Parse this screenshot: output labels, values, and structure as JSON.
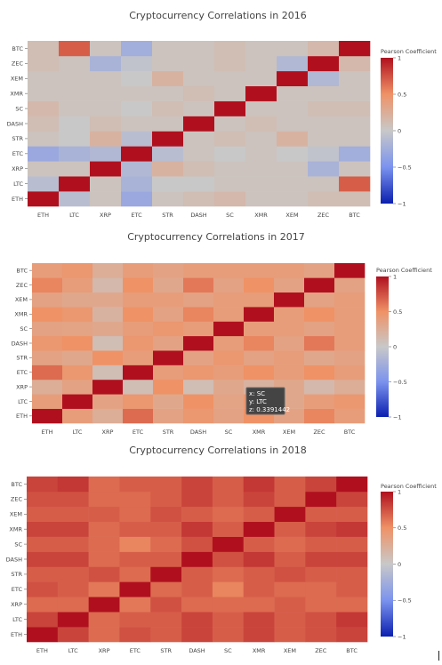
{
  "colors": {
    "neg1": "#0b1fb0",
    "negHalf": "#7b93ee",
    "zero": "#c8c8c8",
    "posHalf": "#ef9266",
    "pos1": "#b0101e"
  },
  "colorbar": {
    "title": "Pearson Coefficient",
    "ticks": [
      "1",
      "0.5",
      "0",
      "−0.5",
      "−1"
    ],
    "tick_values": [
      1,
      0.5,
      0,
      -0.5,
      -1
    ]
  },
  "chart_data": [
    {
      "type": "heatmap",
      "title": "Cryptocurrency Correlations in 2016",
      "x": [
        "ETH",
        "LTC",
        "XRP",
        "ETC",
        "STR",
        "DASH",
        "SC",
        "XMR",
        "XEM",
        "ZEC",
        "BTC"
      ],
      "y": [
        "ETH",
        "LTC",
        "XRP",
        "ETC",
        "STR",
        "DASH",
        "SC",
        "XMR",
        "XEM",
        "ZEC",
        "BTC"
      ],
      "zlim": [
        -1,
        1
      ],
      "z": [
        [
          1.0,
          -0.1,
          0.05,
          -0.3,
          0.05,
          0.1,
          0.15,
          0.05,
          0.05,
          0.1,
          0.1
        ],
        [
          -0.1,
          1.0,
          0.05,
          -0.2,
          0.0,
          0.0,
          0.05,
          0.05,
          0.05,
          0.05,
          0.7
        ],
        [
          0.05,
          0.05,
          1.0,
          -0.15,
          0.2,
          0.1,
          0.05,
          0.05,
          0.05,
          -0.2,
          0.05
        ],
        [
          -0.3,
          -0.2,
          -0.15,
          1.0,
          -0.1,
          0.05,
          0.0,
          0.05,
          0.0,
          -0.05,
          -0.25
        ],
        [
          0.05,
          0.0,
          0.2,
          -0.1,
          1.0,
          0.05,
          0.1,
          0.05,
          0.2,
          0.05,
          0.05
        ],
        [
          0.1,
          0.0,
          0.1,
          0.05,
          0.05,
          1.0,
          0.05,
          0.1,
          0.05,
          0.05,
          0.05
        ],
        [
          0.15,
          0.05,
          0.05,
          0.0,
          0.1,
          0.05,
          1.0,
          0.05,
          0.05,
          0.1,
          0.1
        ],
        [
          0.05,
          0.05,
          0.05,
          0.05,
          0.05,
          0.1,
          0.05,
          1.0,
          0.05,
          0.05,
          0.05
        ],
        [
          0.05,
          0.05,
          0.05,
          0.0,
          0.2,
          0.05,
          0.05,
          0.05,
          1.0,
          -0.15,
          0.05
        ],
        [
          0.1,
          0.05,
          -0.2,
          -0.05,
          0.05,
          0.05,
          0.1,
          0.05,
          -0.15,
          1.0,
          0.15
        ],
        [
          0.1,
          0.7,
          0.05,
          -0.25,
          0.05,
          0.05,
          0.1,
          0.05,
          0.05,
          0.15,
          1.0
        ]
      ]
    },
    {
      "type": "heatmap",
      "title": "Cryptocurrency Correlations in 2017",
      "x": [
        "ETH",
        "LTC",
        "XRP",
        "ETC",
        "STR",
        "DASH",
        "SC",
        "XMR",
        "XEM",
        "ZEC",
        "BTC"
      ],
      "y": [
        "ETH",
        "LTC",
        "XRP",
        "ETC",
        "STR",
        "DASH",
        "SC",
        "XMR",
        "XEM",
        "ZEC",
        "BTC"
      ],
      "zlim": [
        -1,
        1
      ],
      "z": [
        [
          1.0,
          0.4,
          0.25,
          0.65,
          0.35,
          0.45,
          0.35,
          0.5,
          0.35,
          0.55,
          0.4
        ],
        [
          0.4,
          1.0,
          0.35,
          0.45,
          0.3,
          0.5,
          0.34,
          0.45,
          0.3,
          0.4,
          0.45
        ],
        [
          0.25,
          0.35,
          1.0,
          0.1,
          0.5,
          0.1,
          0.3,
          0.2,
          0.3,
          0.15,
          0.25
        ],
        [
          0.65,
          0.45,
          0.1,
          1.0,
          0.4,
          0.45,
          0.4,
          0.5,
          0.4,
          0.5,
          0.4
        ],
        [
          0.35,
          0.3,
          0.5,
          0.4,
          1.0,
          0.35,
          0.45,
          0.35,
          0.4,
          0.3,
          0.35
        ],
        [
          0.45,
          0.5,
          0.1,
          0.45,
          0.35,
          1.0,
          0.4,
          0.55,
          0.35,
          0.6,
          0.4
        ],
        [
          0.35,
          0.34,
          0.3,
          0.4,
          0.45,
          0.4,
          1.0,
          0.4,
          0.4,
          0.35,
          0.4
        ],
        [
          0.5,
          0.45,
          0.2,
          0.5,
          0.35,
          0.55,
          0.4,
          1.0,
          0.4,
          0.5,
          0.4
        ],
        [
          0.35,
          0.3,
          0.3,
          0.4,
          0.4,
          0.35,
          0.4,
          0.4,
          1.0,
          0.35,
          0.4
        ],
        [
          0.55,
          0.4,
          0.15,
          0.5,
          0.3,
          0.6,
          0.35,
          0.5,
          0.35,
          1.0,
          0.35
        ],
        [
          0.4,
          0.45,
          0.25,
          0.4,
          0.35,
          0.4,
          0.4,
          0.4,
          0.4,
          0.35,
          1.0
        ]
      ]
    },
    {
      "type": "heatmap",
      "title": "Cryptocurrency Correlations in 2018",
      "x": [
        "ETH",
        "LTC",
        "XRP",
        "ETC",
        "STR",
        "DASH",
        "SC",
        "XMR",
        "XEM",
        "ZEC",
        "BTC"
      ],
      "y": [
        "ETH",
        "LTC",
        "XRP",
        "ETC",
        "STR",
        "DASH",
        "SC",
        "XMR",
        "XEM",
        "ZEC",
        "BTC"
      ],
      "zlim": [
        -1,
        1
      ],
      "z": [
        [
          1.0,
          0.8,
          0.65,
          0.75,
          0.7,
          0.8,
          0.7,
          0.8,
          0.7,
          0.75,
          0.8
        ],
        [
          0.8,
          1.0,
          0.65,
          0.7,
          0.7,
          0.8,
          0.7,
          0.8,
          0.7,
          0.75,
          0.85
        ],
        [
          0.65,
          0.65,
          1.0,
          0.6,
          0.75,
          0.65,
          0.65,
          0.65,
          0.7,
          0.65,
          0.65
        ],
        [
          0.75,
          0.7,
          0.6,
          1.0,
          0.65,
          0.7,
          0.55,
          0.7,
          0.65,
          0.65,
          0.7
        ],
        [
          0.7,
          0.7,
          0.75,
          0.65,
          1.0,
          0.7,
          0.65,
          0.7,
          0.75,
          0.7,
          0.7
        ],
        [
          0.8,
          0.8,
          0.65,
          0.7,
          0.7,
          1.0,
          0.75,
          0.85,
          0.7,
          0.8,
          0.8
        ],
        [
          0.7,
          0.7,
          0.65,
          0.55,
          0.65,
          0.75,
          1.0,
          0.7,
          0.65,
          0.7,
          0.7
        ],
        [
          0.8,
          0.8,
          0.65,
          0.7,
          0.7,
          0.85,
          0.7,
          1.0,
          0.7,
          0.8,
          0.85
        ],
        [
          0.7,
          0.7,
          0.7,
          0.65,
          0.75,
          0.7,
          0.65,
          0.7,
          1.0,
          0.7,
          0.7
        ],
        [
          0.75,
          0.75,
          0.65,
          0.65,
          0.7,
          0.8,
          0.7,
          0.8,
          0.7,
          1.0,
          0.8
        ],
        [
          0.8,
          0.85,
          0.65,
          0.7,
          0.7,
          0.8,
          0.7,
          0.85,
          0.7,
          0.8,
          1.0
        ]
      ]
    }
  ],
  "tooltip": {
    "x_line": "x: SC",
    "y_line": "y: LTC",
    "z_line": "z: 0.3391442"
  }
}
